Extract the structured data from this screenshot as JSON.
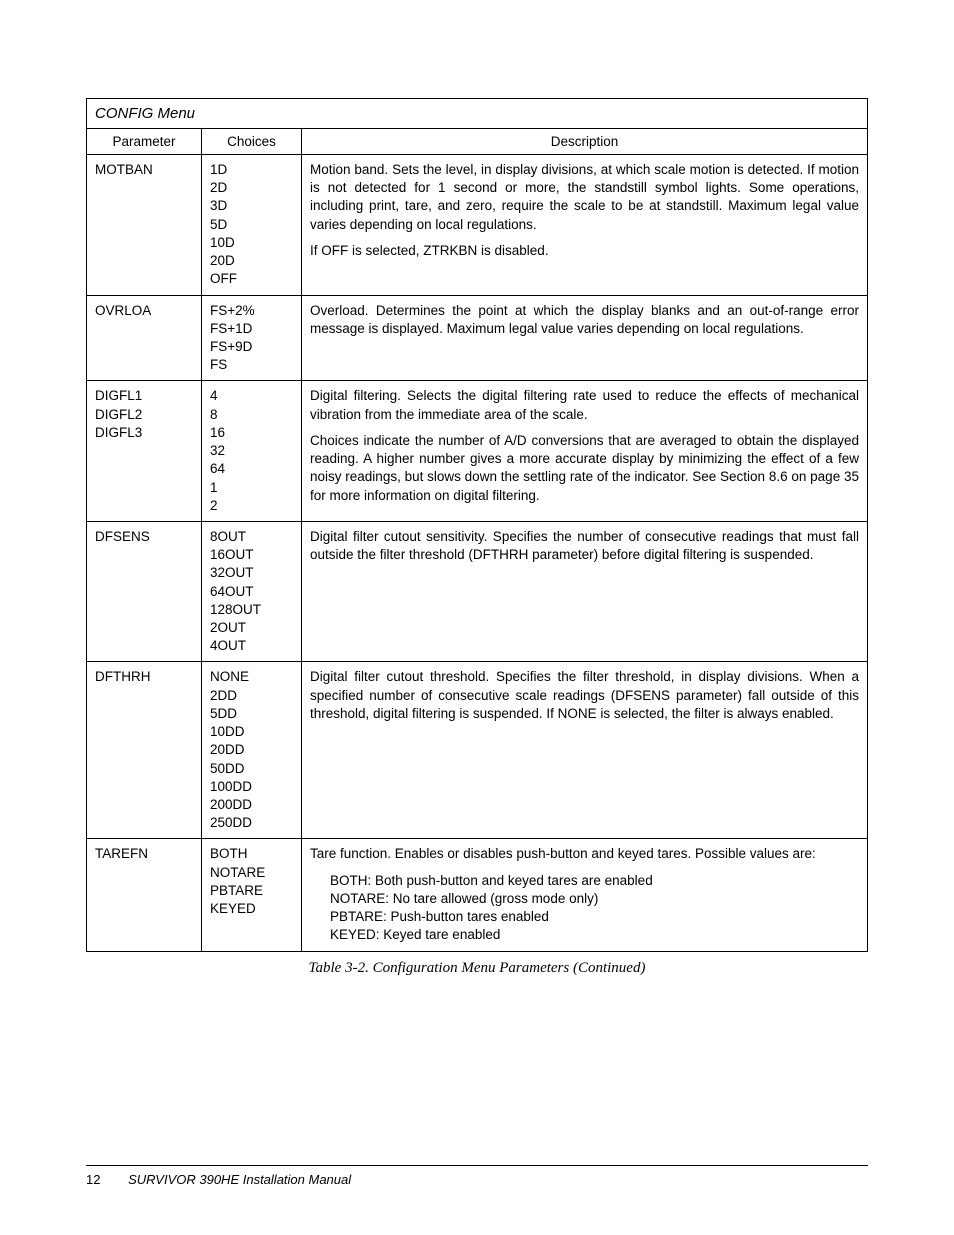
{
  "table": {
    "menu_title": "CONFIG Menu",
    "headers": {
      "parameter": "Parameter",
      "choices": "Choices",
      "description": "Description"
    },
    "rows": [
      {
        "parameter": "MOTBAN",
        "choices": "1D\n2D\n3D\n5D\n10D\n20D\nOFF",
        "desc_paras": [
          "Motion band. Sets the level, in display divisions, at which scale motion is detected. If motion is not detected for 1 second or more, the standstill symbol lights. Some operations, including print, tare, and zero, require the scale to be at standstill. Maximum legal value varies depending on local regulations.",
          "If OFF is selected, ZTRKBN is disabled."
        ]
      },
      {
        "parameter": "OVRLOA",
        "choices": "FS+2%\nFS+1D\nFS+9D\nFS",
        "desc_paras": [
          "Overload. Determines the point at which the display blanks and an out-of-range error message is displayed. Maximum legal value varies depending on local regulations."
        ]
      },
      {
        "parameter": "DIGFL1\nDIGFL2\nDIGFL3",
        "choices": "4\n8\n16\n32\n64\n1\n2",
        "desc_paras": [
          "Digital filtering. Selects the digital filtering rate used to reduce the effects of mechanical vibration from the immediate area of the scale.",
          "Choices indicate the number of A/D conversions that are averaged to obtain the displayed reading. A higher number gives a more accurate display by minimizing the effect of a few noisy readings, but slows down the settling rate of the indicator. See Section 8.6 on page 35 for more information on digital filtering."
        ]
      },
      {
        "parameter": "DFSENS",
        "choices": "8OUT\n16OUT\n32OUT\n64OUT\n128OUT\n2OUT\n4OUT",
        "desc_paras": [
          "Digital filter cutout sensitivity. Specifies the number of consecutive readings that must fall outside the filter threshold (DFTHRH parameter) before digital filtering is suspended."
        ]
      },
      {
        "parameter": "DFTHRH",
        "choices": "NONE\n2DD\n5DD\n10DD\n20DD\n50DD\n100DD\n200DD\n250DD",
        "desc_paras": [
          "Digital filter cutout threshold. Specifies the filter threshold, in display divisions. When a specified number of consecutive scale readings (DFSENS parameter) fall outside of this threshold, digital filtering is suspended. If NONE is selected, the filter is always enabled."
        ]
      },
      {
        "parameter": "TAREFN",
        "choices": "BOTH\nNOTARE\nPBTARE\nKEYED",
        "desc_paras": [
          "Tare function. Enables or disables push-button and keyed tares. Possible values are:"
        ],
        "desc_list": [
          "BOTH:  Both push-button and keyed tares are enabled",
          "NOTARE:  No tare allowed (gross mode only)",
          "PBTARE: Push-button tares enabled",
          "KEYED:  Keyed tare enabled"
        ]
      }
    ]
  },
  "caption": "Table 3-2. Configuration Menu Parameters (Continued)",
  "footer": {
    "page_number": "12",
    "manual_title": "SURVIVOR 390HE Installation Manual"
  }
}
